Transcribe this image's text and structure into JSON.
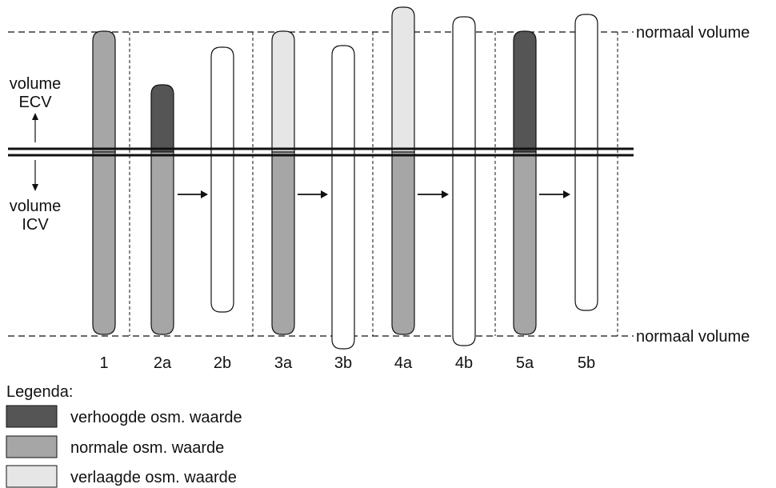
{
  "labels": {
    "normal_volume_top": "normaal volume",
    "normal_volume_bottom": "normaal volume",
    "ecv_line1": "volume",
    "ecv_line2": "ECV",
    "icv_line1": "volume",
    "icv_line2": "ICV"
  },
  "columns": [
    {
      "label": "1",
      "ecv": "normal",
      "icv": "normal"
    },
    {
      "label": "2a",
      "ecv": "increased",
      "icv": "normal"
    },
    {
      "label": "2b",
      "ecv": "none",
      "icv": "none"
    },
    {
      "label": "3a",
      "ecv": "decreased",
      "icv": "normal"
    },
    {
      "label": "3b",
      "ecv": "none",
      "icv": "none"
    },
    {
      "label": "4a",
      "ecv": "decreased",
      "icv": "normal"
    },
    {
      "label": "4b",
      "ecv": "none",
      "icv": "none"
    },
    {
      "label": "5a",
      "ecv": "increased",
      "icv": "normal"
    },
    {
      "label": "5b",
      "ecv": "none",
      "icv": "none"
    }
  ],
  "legend": {
    "title": "Legenda:",
    "items": [
      {
        "key": "increased",
        "label": "verhoogde osm. waarde",
        "color": "#555555"
      },
      {
        "key": "normal",
        "label": "normale osm. waarde",
        "color": "#a6a6a6"
      },
      {
        "key": "decreased",
        "label": "verlaagde osm. waarde",
        "color": "#e6e6e6"
      }
    ]
  },
  "colors": {
    "increased": "#555555",
    "normal": "#a6a6a6",
    "decreased": "#e6e6e6",
    "none": "#ffffff",
    "stroke": "#111111"
  }
}
